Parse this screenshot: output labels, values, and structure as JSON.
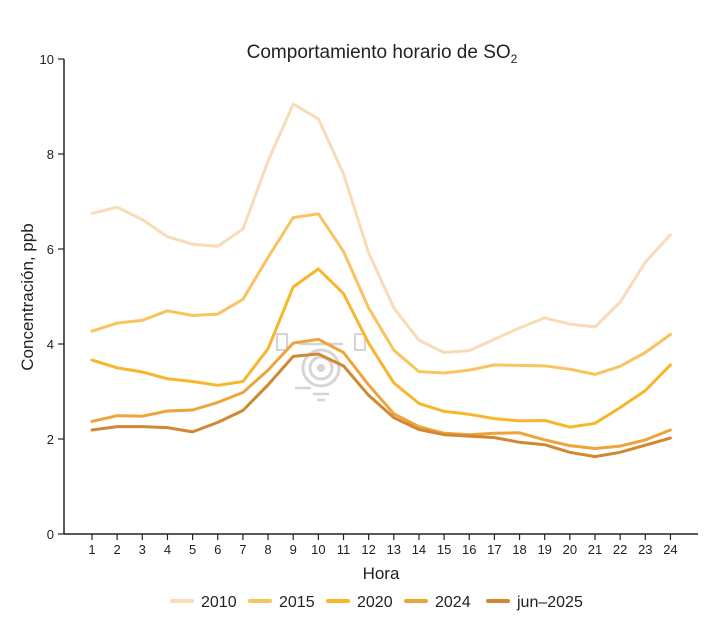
{
  "chart_data": {
    "type": "line",
    "title": "Comportamiento horario de SO",
    "title_subscript": "2",
    "xlabel": "Hora",
    "ylabel": "Concentración, ppb",
    "x": [
      1,
      2,
      3,
      4,
      5,
      6,
      7,
      8,
      9,
      10,
      11,
      12,
      13,
      14,
      15,
      16,
      17,
      18,
      19,
      20,
      21,
      22,
      23,
      24
    ],
    "ylim": [
      0,
      10
    ],
    "yticks": [
      0,
      2,
      4,
      6,
      8,
      10
    ],
    "grid": false,
    "legend_position": "bottom",
    "series": [
      {
        "name": "2010",
        "color": "#f8dcb8",
        "values": [
          6.75,
          6.88,
          6.62,
          6.26,
          6.1,
          6.06,
          6.42,
          7.85,
          9.05,
          8.74,
          7.58,
          5.92,
          4.76,
          4.08,
          3.82,
          3.86,
          4.1,
          4.34,
          4.55,
          4.42,
          4.36,
          4.88,
          5.72,
          6.3
        ]
      },
      {
        "name": "2015",
        "color": "#f9c360",
        "values": [
          4.27,
          4.44,
          4.5,
          4.7,
          4.6,
          4.63,
          4.94,
          5.82,
          6.66,
          6.74,
          5.95,
          4.76,
          3.87,
          3.42,
          3.39,
          3.45,
          3.56,
          3.55,
          3.54,
          3.47,
          3.36,
          3.53,
          3.82,
          4.2
        ]
      },
      {
        "name": "2020",
        "color": "#f7b62c",
        "values": [
          3.66,
          3.5,
          3.41,
          3.27,
          3.21,
          3.13,
          3.21,
          3.9,
          5.2,
          5.58,
          5.06,
          4.02,
          3.18,
          2.75,
          2.58,
          2.52,
          2.43,
          2.38,
          2.39,
          2.25,
          2.33,
          2.66,
          3.02,
          3.56
        ]
      },
      {
        "name": "2024",
        "color": "#eda43a",
        "values": [
          2.37,
          2.49,
          2.48,
          2.59,
          2.61,
          2.77,
          2.98,
          3.45,
          4.02,
          4.1,
          3.82,
          3.14,
          2.53,
          2.26,
          2.12,
          2.09,
          2.12,
          2.13,
          1.98,
          1.86,
          1.8,
          1.85,
          1.98,
          2.19
        ]
      },
      {
        "name": "jun–2025",
        "color": "#d08832",
        "values": [
          2.19,
          2.26,
          2.26,
          2.24,
          2.15,
          2.35,
          2.6,
          3.14,
          3.74,
          3.79,
          3.54,
          2.92,
          2.45,
          2.2,
          2.09,
          2.06,
          2.03,
          1.93,
          1.88,
          1.72,
          1.63,
          1.72,
          1.87,
          2.02
        ]
      }
    ]
  }
}
